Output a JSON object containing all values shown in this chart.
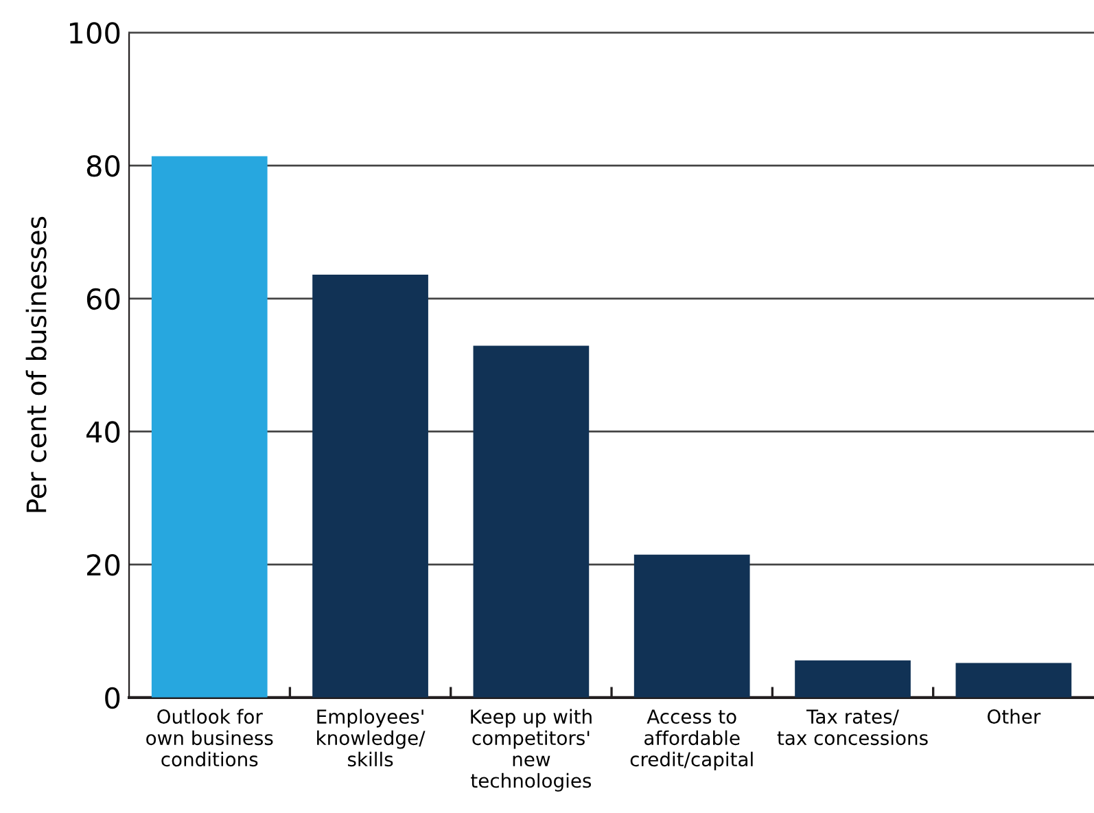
{
  "chart_data": {
    "type": "bar",
    "ylabel": "Per cent of businesses",
    "categories": [
      "Outlook for\nown business\nconditions",
      "Employees'\nknowledge/\nskills",
      "Keep up with\ncompetitors'\nnew\ntechnologies",
      "Access to\naffordable\ncredit/capital",
      "Tax rates/\ntax concessions",
      "Other"
    ],
    "values": [
      81.4,
      63.6,
      52.9,
      21.5,
      5.6,
      5.2
    ],
    "colors": [
      "#27a7df",
      "#113255",
      "#113255",
      "#113255",
      "#113255",
      "#113255"
    ],
    "ylim": [
      0,
      100
    ],
    "yticks": [
      0,
      20,
      40,
      60,
      80,
      100
    ],
    "grid": "y"
  }
}
